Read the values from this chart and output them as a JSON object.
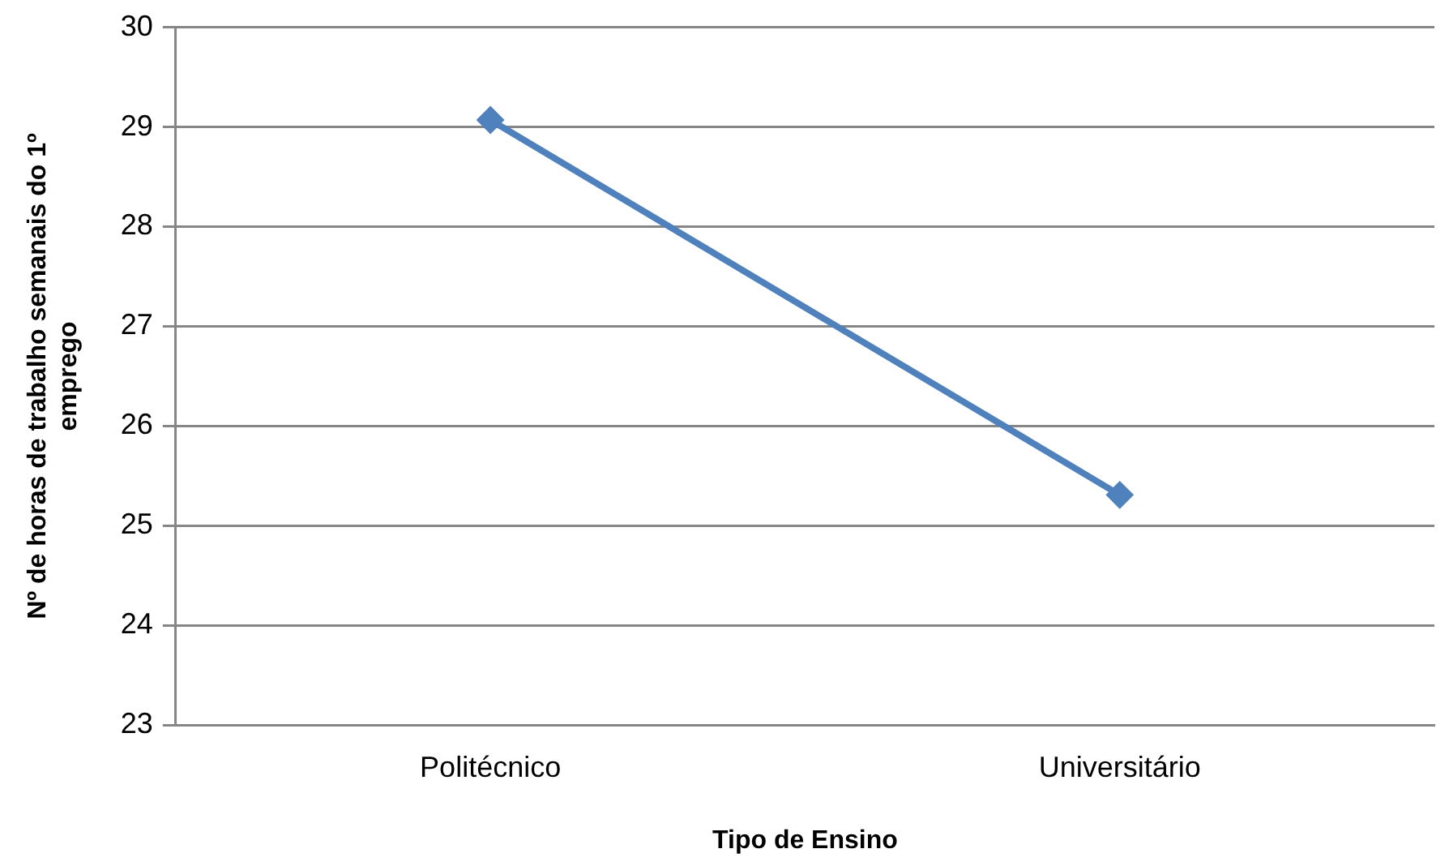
{
  "chart_data": {
    "type": "line",
    "xlabel": "Tipo de Ensino",
    "ylabel": "Nº de horas de trabalho semanais do 1º emprego",
    "categories": [
      "Politécnico",
      "Universitário"
    ],
    "series": [
      {
        "color": "#4f81bd",
        "values": [
          29.07,
          25.31
        ]
      }
    ],
    "ylim": [
      23,
      30
    ],
    "yticks": [
      23,
      24,
      25,
      26,
      27,
      28,
      29,
      30
    ],
    "grid": "y",
    "marker": "diamond",
    "legend": false
  }
}
